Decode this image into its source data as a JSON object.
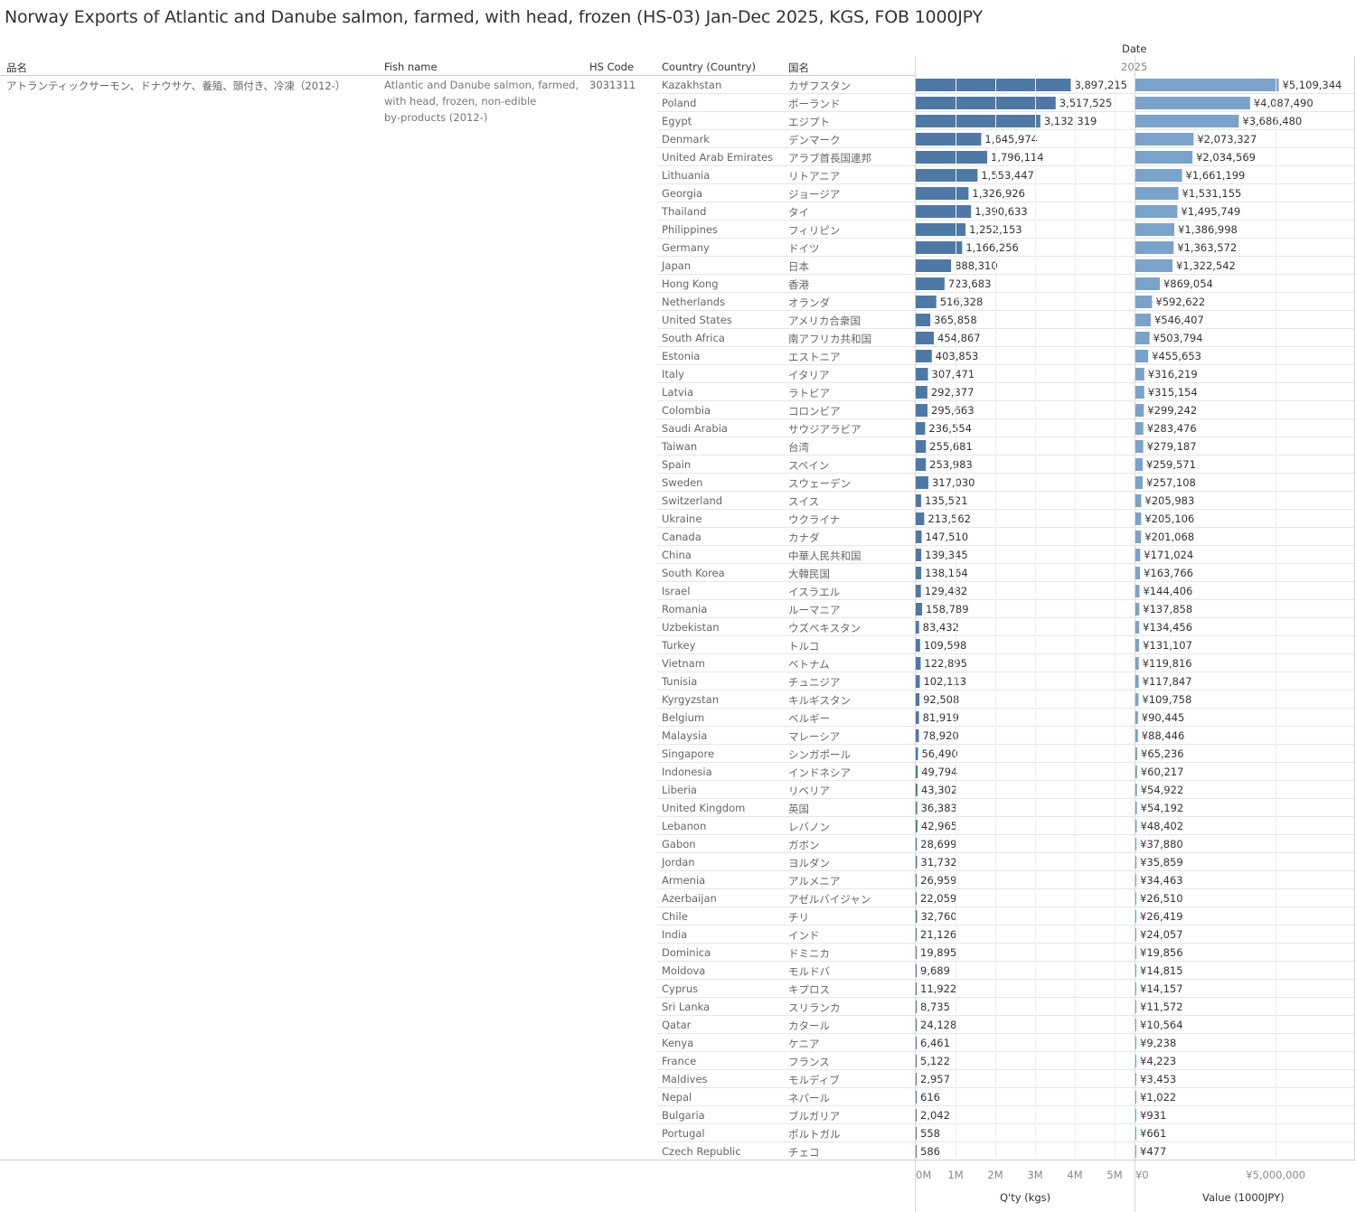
{
  "title": "Norway Exports of Atlantic and Danube salmon, farmed, with head, frozen (HS-03) Jan-Dec 2025, KGS, FOB 1000JPY",
  "headers": {
    "hinmei": "品名",
    "fish_name": "Fish name",
    "hs_code": "HS Code",
    "country": "Country (Country)",
    "kokumei": "国名",
    "date": "Date",
    "year": "2025"
  },
  "product": {
    "hinmei": "アトランティックサーモン、ドナウサケ、養殖、頭付き、冷凍（2012-）",
    "fish_name_lines": [
      "Atlantic and Danube salmon, farmed,",
      "with head, frozen, non-edible",
      "by-products (2012-)"
    ],
    "hs_code": "3031311"
  },
  "colors": {
    "qty_bar": "#4e79a7",
    "value_bar": "#79a3cb"
  },
  "chart_data": {
    "type": "bar",
    "orientation": "horizontal",
    "title": "Norway Exports of Atlantic and Danube salmon, farmed, with head, frozen (HS-03) Jan-Dec 2025, KGS, FOB 1000JPY",
    "categories": [
      "Kazakhstan",
      "Poland",
      "Egypt",
      "Denmark",
      "United Arab Emirates",
      "Lithuania",
      "Georgia",
      "Thailand",
      "Philippines",
      "Germany",
      "Japan",
      "Hong Kong",
      "Netherlands",
      "United States",
      "South Africa",
      "Estonia",
      "Italy",
      "Latvia",
      "Colombia",
      "Saudi Arabia",
      "Taiwan",
      "Spain",
      "Sweden",
      "Switzerland",
      "Ukraine",
      "Canada",
      "China",
      "South Korea",
      "Israel",
      "Romania",
      "Uzbekistan",
      "Turkey",
      "Vietnam",
      "Tunisia",
      "Kyrgyzstan",
      "Belgium",
      "Malaysia",
      "Singapore",
      "Indonesia",
      "Liberia",
      "United Kingdom",
      "Lebanon",
      "Gabon",
      "Jordan",
      "Armenia",
      "Azerbaijan",
      "Chile",
      "India",
      "Dominica",
      "Moldova",
      "Cyprus",
      "Sri Lanka",
      "Qatar",
      "Kenya",
      "France",
      "Maldives",
      "Nepal",
      "Bulgaria",
      "Portugal",
      "Czech Republic"
    ],
    "categories_ja": [
      "カザフスタン",
      "ポーランド",
      "エジプト",
      "デンマーク",
      "アラブ首長国連邦",
      "リトアニア",
      "ジョージア",
      "タイ",
      "フィリピン",
      "ドイツ",
      "日本",
      "香港",
      "オランダ",
      "アメリカ合衆国",
      "南アフリカ共和国",
      "エストニア",
      "イタリア",
      "ラトビア",
      "コロンビア",
      "サウジアラビア",
      "台湾",
      "スペイン",
      "スウェーデン",
      "スイス",
      "ウクライナ",
      "カナダ",
      "中華人民共和国",
      "大韓民国",
      "イスラエル",
      "ルーマニア",
      "ウズベキスタン",
      "トルコ",
      "ベトナム",
      "チュニジア",
      "キルギスタン",
      "ベルギー",
      "マレーシア",
      "シンガポール",
      "インドネシア",
      "リベリア",
      "英国",
      "レバノン",
      "ガボン",
      "ヨルダン",
      "アルメニア",
      "アゼルバイジャン",
      "チリ",
      "インド",
      "ドミニカ",
      "モルドバ",
      "キプロス",
      "スリランカ",
      "カタール",
      "ケニア",
      "フランス",
      "モルディブ",
      "ネパール",
      "ブルガリア",
      "ポルトガル",
      "チェコ"
    ],
    "series": [
      {
        "name": "Q'ty (kgs)",
        "values": [
          3897215,
          3517525,
          3132319,
          1645974,
          1796114,
          1553447,
          1326926,
          1390633,
          1252153,
          1166256,
          888310,
          723683,
          516328,
          365858,
          454867,
          403853,
          307471,
          292377,
          295663,
          236554,
          255681,
          253983,
          317030,
          135521,
          213562,
          147510,
          139345,
          138164,
          129482,
          158789,
          83432,
          109598,
          122895,
          102113,
          92508,
          81919,
          78920,
          56490,
          49794,
          43302,
          36383,
          42965,
          28699,
          31732,
          26959,
          22059,
          32760,
          21126,
          19895,
          9689,
          11922,
          8735,
          24128,
          6461,
          5122,
          2957,
          616,
          2042,
          558,
          586
        ],
        "labels": [
          "3,897,215",
          "3,517,525",
          "3,132,319",
          "1,645,974",
          "1,796,114",
          "1,553,447",
          "1,326,926",
          "1,390,633",
          "1,252,153",
          "1,166,256",
          "888,310",
          "723,683",
          "516,328",
          "365,858",
          "454,867",
          "403,853",
          "307,471",
          "292,377",
          "295,663",
          "236,554",
          "255,681",
          "253,983",
          "317,030",
          "135,521",
          "213,562",
          "147,510",
          "139,345",
          "138,164",
          "129,482",
          "158,789",
          "83,432",
          "109,598",
          "122,895",
          "102,113",
          "92,508",
          "81,919",
          "78,920",
          "56,490",
          "49,794",
          "43,302",
          "36,383",
          "42,965",
          "28,699",
          "31,732",
          "26,959",
          "22,059",
          "32,760",
          "21,126",
          "19,895",
          "9,689",
          "11,922",
          "8,735",
          "24,128",
          "6,461",
          "5,122",
          "2,957",
          "616",
          "2,042",
          "558",
          "586"
        ],
        "xlim": [
          0,
          5500000
        ],
        "ticks": [
          0,
          1000000,
          2000000,
          3000000,
          4000000,
          5000000
        ],
        "tick_labels": [
          "0M",
          "1M",
          "2M",
          "3M",
          "4M",
          "5M"
        ],
        "xlabel": "Q'ty (kgs)"
      },
      {
        "name": "Value (1000JPY)",
        "values": [
          5109344,
          4087490,
          3686480,
          2073327,
          2034569,
          1661199,
          1531155,
          1495749,
          1386998,
          1363572,
          1322542,
          869054,
          592622,
          546407,
          503794,
          455653,
          316219,
          315154,
          299242,
          283476,
          279187,
          259571,
          257108,
          205983,
          205106,
          201068,
          171024,
          163766,
          144406,
          137858,
          134456,
          131107,
          119816,
          117847,
          109758,
          90445,
          88446,
          65236,
          60217,
          54922,
          54192,
          48402,
          37880,
          35859,
          34463,
          26510,
          26419,
          24057,
          19856,
          14815,
          14157,
          11572,
          10564,
          9238,
          4223,
          3453,
          1022,
          931,
          661,
          477
        ],
        "labels": [
          "¥5,109,344",
          "¥4,087,490",
          "¥3,686,480",
          "¥2,073,327",
          "¥2,034,569",
          "¥1,661,199",
          "¥1,531,155",
          "¥1,495,749",
          "¥1,386,998",
          "¥1,363,572",
          "¥1,322,542",
          "¥869,054",
          "¥592,622",
          "¥546,407",
          "¥503,794",
          "¥455,653",
          "¥316,219",
          "¥315,154",
          "¥299,242",
          "¥283,476",
          "¥279,187",
          "¥259,571",
          "¥257,108",
          "¥205,983",
          "¥205,106",
          "¥201,068",
          "¥171,024",
          "¥163,766",
          "¥144,406",
          "¥137,858",
          "¥134,456",
          "¥131,107",
          "¥119,816",
          "¥117,847",
          "¥109,758",
          "¥90,445",
          "¥88,446",
          "¥65,236",
          "¥60,217",
          "¥54,922",
          "¥54,192",
          "¥48,402",
          "¥37,880",
          "¥35,859",
          "¥34,463",
          "¥26,510",
          "¥26,419",
          "¥24,057",
          "¥19,856",
          "¥14,815",
          "¥14,157",
          "¥11,572",
          "¥10,564",
          "¥9,238",
          "¥4,223",
          "¥3,453",
          "¥1,022",
          "¥931",
          "¥661",
          "¥477"
        ],
        "xlim": [
          0,
          7800000
        ],
        "ticks": [
          0,
          5000000
        ],
        "tick_labels": [
          "¥0",
          "¥5,000,000"
        ],
        "xlabel": "Value (1000JPY)"
      }
    ]
  }
}
